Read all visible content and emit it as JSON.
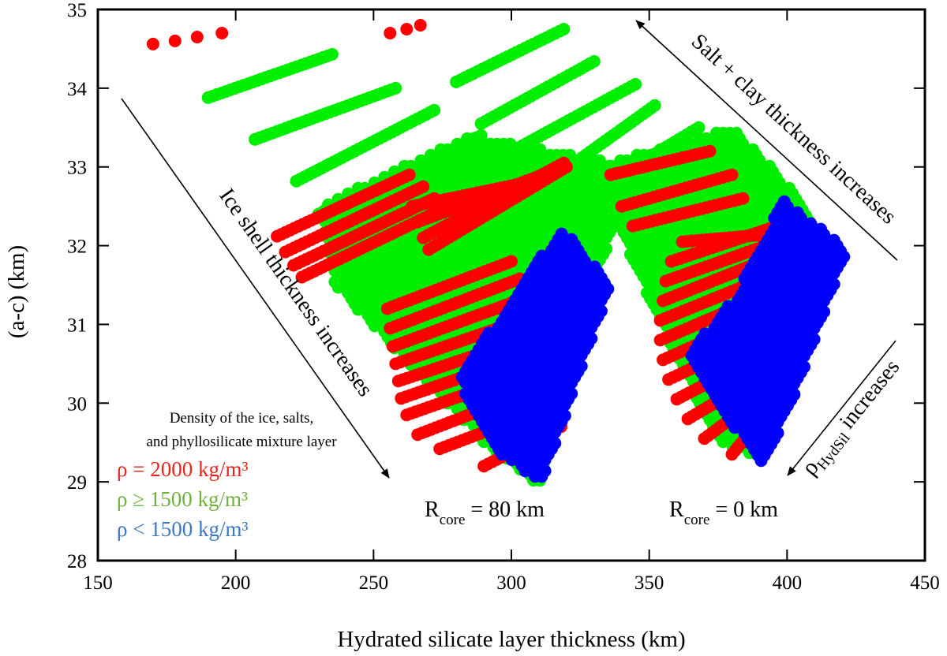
{
  "chart_data": {
    "type": "scatter",
    "xlabel": "Hydrated silicate layer thickness (km)",
    "ylabel": "(a-c) (km)",
    "xlim": [
      150,
      450
    ],
    "ylim": [
      28,
      35
    ],
    "xticks": [
      "150",
      "200",
      "250",
      "300",
      "350",
      "400",
      "450"
    ],
    "yticks": [
      "28",
      "29",
      "30",
      "31",
      "32",
      "33",
      "34",
      "35"
    ],
    "legend": {
      "title_line1": "Density of the ice, salts,",
      "title_line2": "and phyllosilicate mixture layer",
      "position": "bottom-left",
      "entries": [
        {
          "label": "ρ = 2000 kg/m³",
          "color": "#ff0000"
        },
        {
          "label": "ρ ≥ 1500 kg/m³",
          "color": "#00ee00"
        },
        {
          "label": "ρ < 1500 kg/m³",
          "color": "#0000ff"
        }
      ],
      "entry_colors": [
        "#e8241c",
        "#72b03c",
        "#3a78c0"
      ]
    },
    "annotations": {
      "ice_shell": "Ice shell thickness increases",
      "salt_clay": "Salt + clay thickness increases",
      "rho_prefix": "ρ",
      "rho_sub": "HydSil",
      "rho_suffix": " increases",
      "rcore80_main": "R",
      "rcore80_sub": "core",
      "rcore80_value": " = 80 km",
      "rcore0_main": "R",
      "rcore0_sub": "core",
      "rcore0_value": " = 0 km"
    },
    "series": [
      {
        "color": "#ff0000",
        "points": [
          [
            170,
            34.56
          ],
          [
            178,
            34.6
          ],
          [
            186,
            34.65
          ],
          [
            195,
            34.7
          ],
          [
            256,
            34.7
          ],
          [
            262,
            34.75
          ],
          [
            267,
            34.8
          ]
        ]
      },
      {
        "color": "#00ee00",
        "lines": [
          [
            [
              190,
              33.88
            ],
            [
              235,
              34.43
            ]
          ],
          [
            [
              207,
              33.35
            ],
            [
              258,
              34.0
            ]
          ],
          [
            [
              222,
              32.82
            ],
            [
              272,
              33.72
            ]
          ],
          [
            [
              230,
              32.4
            ],
            [
              289,
              33.4
            ]
          ],
          [
            [
              280,
              34.08
            ],
            [
              319,
              34.75
            ]
          ],
          [
            [
              289,
              33.55
            ],
            [
              330,
              34.34
            ]
          ],
          [
            [
              295,
              33.1
            ],
            [
              345,
              34.05
            ]
          ],
          [
            [
              305,
              32.6
            ],
            [
              352,
              33.78
            ]
          ],
          [
            [
              320,
              32.5
            ],
            [
              368,
              33.5
            ]
          ]
        ]
      },
      {
        "color": "#00ee00",
        "polygons": [
          [
            [
              230,
              32.5
            ],
            [
              285,
              33.4
            ],
            [
              345,
              33.0
            ],
            [
              325,
              31.0
            ],
            [
              310,
              28.95
            ],
            [
              290,
              29.5
            ],
            [
              236,
              31.5
            ]
          ],
          [
            [
              330,
              33.0
            ],
            [
              380,
              33.5
            ],
            [
              405,
              32.6
            ],
            [
              415,
              31.9
            ],
            [
              392,
              29.3
            ],
            [
              375,
              29.5
            ],
            [
              350,
              31.3
            ]
          ]
        ]
      },
      {
        "color": "#ff0000",
        "lines": [
          [
            [
              215,
              32.12
            ],
            [
              263,
              32.9
            ]
          ],
          [
            [
              218,
              31.92
            ],
            [
              268,
              32.75
            ]
          ],
          [
            [
              221,
              31.75
            ],
            [
              272,
              32.6
            ]
          ],
          [
            [
              224,
              31.6
            ],
            [
              276,
              32.48
            ]
          ],
          [
            [
              264,
              32.5
            ],
            [
              308,
              32.82
            ]
          ],
          [
            [
              266,
              32.3
            ],
            [
              315,
              32.95
            ]
          ],
          [
            [
              268,
              32.1
            ],
            [
              319,
              33.05
            ]
          ],
          [
            [
              270,
              31.95
            ],
            [
              320,
              33.0
            ]
          ]
        ]
      },
      {
        "color": "#ff0000",
        "lines": [
          [
            [
              255,
              31.2
            ],
            [
              300,
              31.8
            ]
          ],
          [
            [
              256,
              30.95
            ],
            [
              303,
              31.58
            ]
          ],
          [
            [
              257,
              30.72
            ],
            [
              306,
              31.35
            ]
          ],
          [
            [
              258,
              30.5
            ],
            [
              309,
              31.12
            ]
          ],
          [
            [
              259,
              30.28
            ],
            [
              312,
              30.9
            ]
          ],
          [
            [
              260,
              30.06
            ],
            [
              313,
              30.7
            ]
          ],
          [
            [
              262,
              29.85
            ],
            [
              315,
              30.5
            ]
          ],
          [
            [
              266,
              29.6
            ],
            [
              318,
              30.3
            ]
          ],
          [
            [
              274,
              29.42
            ],
            [
              318,
              30.0
            ]
          ],
          [
            [
              290,
              29.2
            ],
            [
              318,
              29.7
            ]
          ]
        ]
      },
      {
        "color": "#ff0000",
        "lines": [
          [
            [
              362,
              32.05
            ],
            [
              412,
              32.2
            ]
          ],
          [
            [
              358,
              31.8
            ],
            [
              405,
              32.35
            ]
          ],
          [
            [
              356,
              31.55
            ],
            [
              402,
              32.12
            ]
          ],
          [
            [
              355,
              31.3
            ],
            [
              398,
              31.9
            ]
          ],
          [
            [
              354,
              31.05
            ],
            [
              396,
              31.65
            ]
          ],
          [
            [
              354,
              30.8
            ],
            [
              394,
              31.4
            ]
          ],
          [
            [
              355,
              30.55
            ],
            [
              393,
              31.15
            ]
          ],
          [
            [
              357,
              30.3
            ],
            [
              393,
              30.9
            ]
          ],
          [
            [
              360,
              30.05
            ],
            [
              393,
              30.65
            ]
          ],
          [
            [
              364,
              29.8
            ],
            [
              393,
              30.4
            ]
          ],
          [
            [
              370,
              29.55
            ],
            [
              393,
              30.15
            ]
          ],
          [
            [
              380,
              29.35
            ],
            [
              393,
              29.9
            ]
          ],
          [
            [
              336,
              32.9
            ],
            [
              372,
              33.2
            ]
          ],
          [
            [
              340,
              32.5
            ],
            [
              380,
              32.9
            ]
          ],
          [
            [
              344,
              32.25
            ],
            [
              384,
              32.6
            ]
          ]
        ]
      },
      {
        "color": "#0000ff",
        "polygons": [
          [
            [
              318,
              32.25
            ],
            [
              336,
              31.5
            ],
            [
              326,
              30.5
            ],
            [
              311,
              29.0
            ],
            [
              295,
              29.35
            ],
            [
              284,
              30.0
            ],
            [
              281,
              30.4
            ],
            [
              292,
              30.9
            ],
            [
              305,
              31.55
            ]
          ],
          [
            [
              398,
              32.6
            ],
            [
              422,
              31.95
            ],
            [
              406,
              30.4
            ],
            [
              392,
              29.2
            ],
            [
              378,
              29.8
            ],
            [
              363,
              30.6
            ],
            [
              381,
              31.35
            ],
            [
              391,
              32.0
            ]
          ]
        ]
      }
    ]
  }
}
